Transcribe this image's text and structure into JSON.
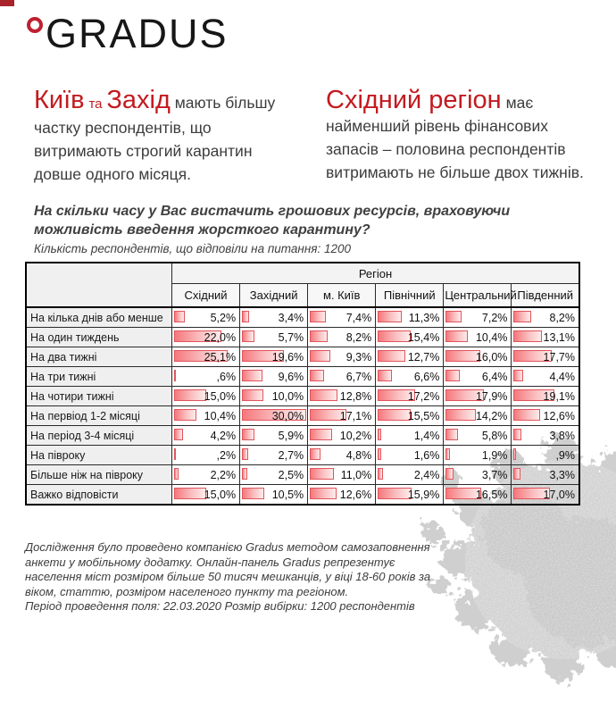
{
  "brand": {
    "logo_text": "GRADUS",
    "degree_icon": "degree-ring",
    "accent_red": "#c21b20"
  },
  "headlines": {
    "left": {
      "accent1": "Київ",
      "connector": "та",
      "accent2": "Захід",
      "lead_rest": "мають більшу",
      "body": "частку респондентів, що витримають строгий карантин довше одного місяця."
    },
    "right": {
      "accent": "Східний регіон",
      "lead_rest": "має",
      "body": "найменший рівень фінансових запасів – половина респондентів витримають не більше двох тижнів."
    }
  },
  "chart_data": {
    "type": "table",
    "title": "На скільки часу у Вас вистачить грошових ресурсів, враховуючи можливість введення жорсткого карантину?",
    "subtitle": "Кількість респондентів, що відповіли на питання: 1200",
    "group_header": "Регіон",
    "columns": [
      "Східний",
      "Західний",
      "м. Київ",
      "Північний",
      "Центральний",
      "Південний"
    ],
    "bar_scale_max": 30,
    "bar_border_color": "#e0565c",
    "bar_fill_start": "#f5787c",
    "bar_fill_end": "#fdeceb",
    "rows": [
      {
        "label": "На кілька днів або менше",
        "display": [
          "5,2%",
          "3,4%",
          "7,4%",
          "11,3%",
          "7,2%",
          "8,2%"
        ],
        "values": [
          5.2,
          3.4,
          7.4,
          11.3,
          7.2,
          8.2
        ]
      },
      {
        "label": "На один тиждень",
        "display": [
          "22,0%",
          "5,7%",
          "8,2%",
          "15,4%",
          "10,4%",
          "13,1%"
        ],
        "values": [
          22.0,
          5.7,
          8.2,
          15.4,
          10.4,
          13.1
        ]
      },
      {
        "label": "На два тижні",
        "display": [
          "25,1%",
          "19,6%",
          "9,3%",
          "12,7%",
          "16,0%",
          "17,7%"
        ],
        "values": [
          25.1,
          19.6,
          9.3,
          12.7,
          16.0,
          17.7
        ]
      },
      {
        "label": "На три тижні",
        "display": [
          ",6%",
          "9,6%",
          "6,7%",
          "6,6%",
          "6,4%",
          "4,4%"
        ],
        "values": [
          0.6,
          9.6,
          6.7,
          6.6,
          6.4,
          4.4
        ]
      },
      {
        "label": "На чотири тижні",
        "display": [
          "15,0%",
          "10,0%",
          "12,8%",
          "17,2%",
          "17,9%",
          "19,1%"
        ],
        "values": [
          15.0,
          10.0,
          12.8,
          17.2,
          17.9,
          19.1
        ]
      },
      {
        "label": "На первіод 1-2 місяці",
        "display": [
          "10,4%",
          "30,0%",
          "17,1%",
          "15,5%",
          "14,2%",
          "12,6%"
        ],
        "values": [
          10.4,
          30.0,
          17.1,
          15.5,
          14.2,
          12.6
        ]
      },
      {
        "label": "На період 3-4 місяці",
        "display": [
          "4,2%",
          "5,9%",
          "10,2%",
          "1,4%",
          "5,8%",
          "3,8%"
        ],
        "values": [
          4.2,
          5.9,
          10.2,
          1.4,
          5.8,
          3.8
        ]
      },
      {
        "label": "На півроку",
        "display": [
          ",2%",
          "2,7%",
          "4,8%",
          "1,6%",
          "1,9%",
          ",9%"
        ],
        "values": [
          0.2,
          2.7,
          4.8,
          1.6,
          1.9,
          0.9
        ]
      },
      {
        "label": "Більше ніж на півроку",
        "display": [
          "2,2%",
          "2,5%",
          "11,0%",
          "2,4%",
          "3,7%",
          "3,3%"
        ],
        "values": [
          2.2,
          2.5,
          11.0,
          2.4,
          3.7,
          3.3
        ]
      },
      {
        "label": "Важко відповісти",
        "display": [
          "15,0%",
          "10,5%",
          "12,6%",
          "15,9%",
          "16,5%",
          "17,0%"
        ],
        "values": [
          15.0,
          10.5,
          12.6,
          15.9,
          16.5,
          17.0
        ]
      }
    ]
  },
  "footer": {
    "methodology": "Дослідження було проведено компанією Gradus методом самозаповнення анкети у мобільному додатку. Онлайн-панель Gradus репрезентує населення міст розміром більше 50 тисяч мешканців, у віці 18-60 років за віком, статтю, розміром населеного пункту та регіоном.",
    "fieldwork": "Період проведення поля: 22.03.2020 Розмір вибірки: 1200 респондентів"
  },
  "icons": {
    "degree_mark": "degree-ring",
    "decor": "coronavirus"
  }
}
